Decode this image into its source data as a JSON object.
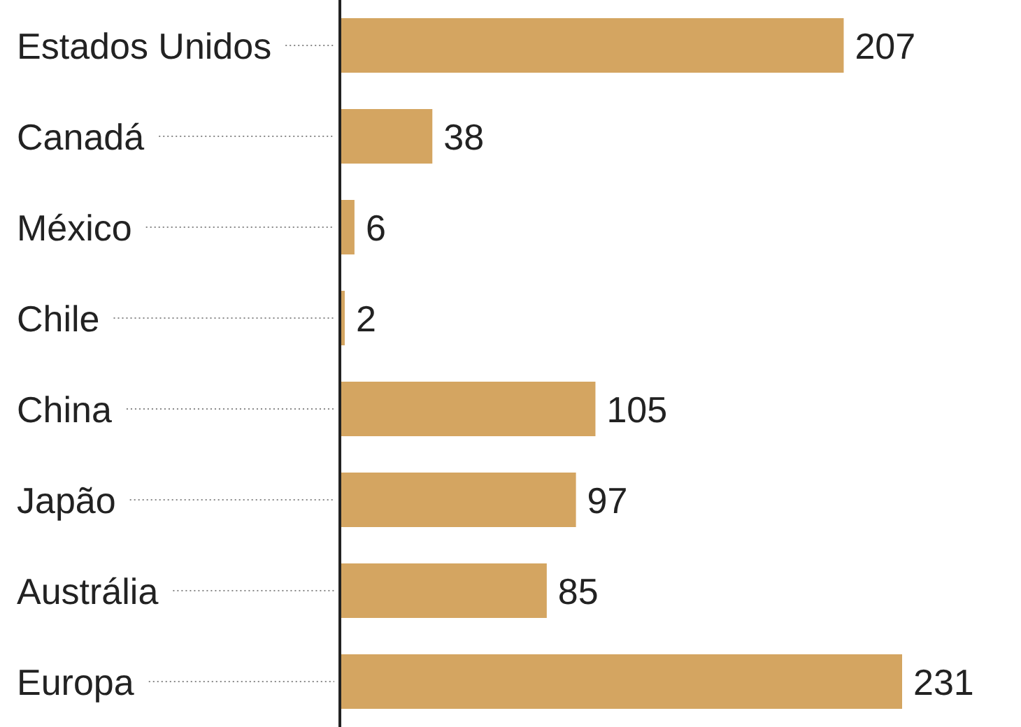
{
  "chart_data": {
    "type": "bar",
    "orientation": "horizontal",
    "categories": [
      "Estados Unidos",
      "Canadá",
      "México",
      "Chile",
      "China",
      "Japão",
      "Austrália",
      "Europa"
    ],
    "values": [
      207,
      38,
      6,
      2,
      105,
      97,
      85,
      231
    ],
    "color": "#d4a561",
    "data_labels": true
  }
}
